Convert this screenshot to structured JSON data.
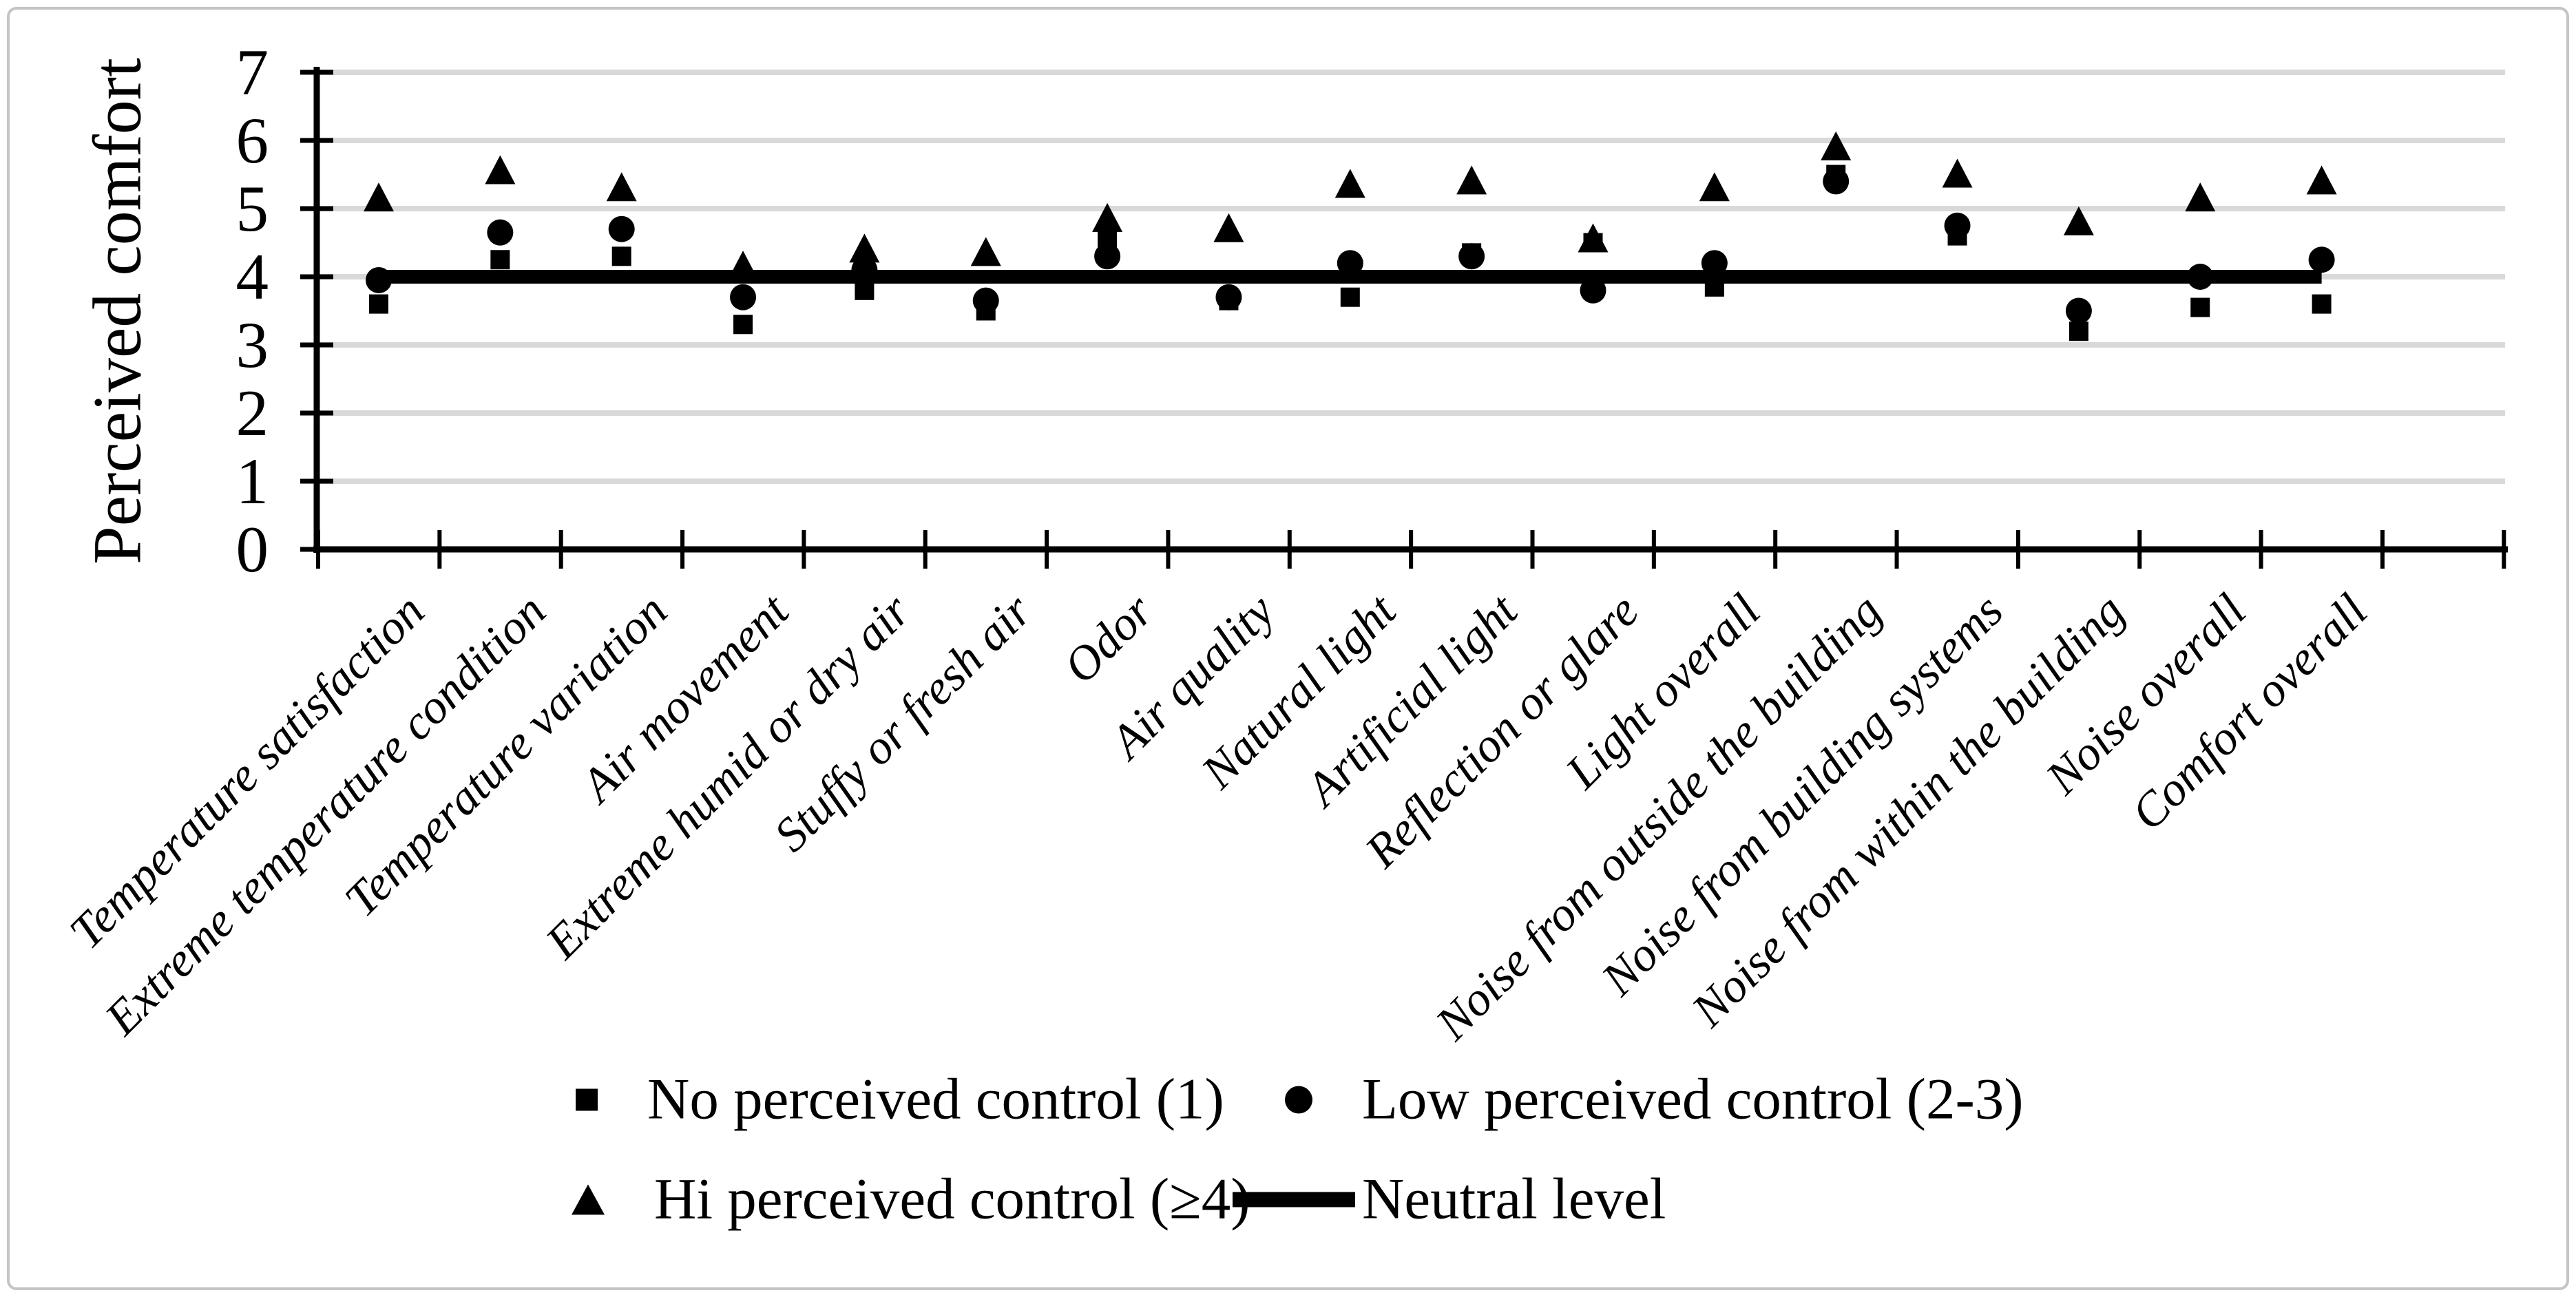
{
  "figure": {
    "ylabel": "Perceived comfort",
    "legend": [
      {
        "marker": "square",
        "label": "No perceived control (1)"
      },
      {
        "marker": "circle",
        "label": "Low perceived control (2-3)"
      },
      {
        "marker": "triangle",
        "label": "Hi perceived control (≥4)"
      },
      {
        "marker": "line",
        "label": "Neutral level"
      }
    ]
  },
  "chart_data": {
    "type": "scatter",
    "title": "",
    "xlabel": "",
    "ylabel": "Perceived comfort",
    "ylim": [
      0,
      7
    ],
    "yticks": [
      0,
      1,
      2,
      3,
      4,
      5,
      6,
      7
    ],
    "grid": true,
    "legend_position": "bottom",
    "categories": [
      "Temperature satisfaction",
      "Extreme temperature condition",
      "Temperature variation",
      "Air movement",
      "Extreme humid or dry air",
      "Stuffy or fresh air",
      "Odor",
      "Air quality",
      "Natural light",
      "Artificial light",
      "Reflection or glare",
      "Light overall",
      "Noise from outside the building",
      "Noise from building systems",
      "Noise from within the building",
      "Noise overall",
      "Comfort overall"
    ],
    "series": [
      {
        "name": "No perceived control (1)",
        "marker": "square",
        "values": [
          3.6,
          4.25,
          4.3,
          3.3,
          3.8,
          3.5,
          4.55,
          3.65,
          3.7,
          4.35,
          4.5,
          3.85,
          5.5,
          4.6,
          3.2,
          3.55,
          3.6
        ]
      },
      {
        "name": "Low perceived control (2-3)",
        "marker": "circle",
        "values": [
          3.95,
          4.65,
          4.7,
          3.7,
          4.1,
          3.65,
          4.3,
          3.7,
          4.2,
          4.3,
          3.8,
          4.2,
          5.4,
          4.75,
          3.5,
          4.0,
          4.25
        ]
      },
      {
        "name": "Hi perceived control (≥4)",
        "marker": "triangle",
        "values": [
          5.15,
          5.55,
          5.3,
          4.15,
          4.4,
          4.35,
          4.85,
          4.7,
          5.35,
          5.4,
          4.55,
          5.3,
          5.9,
          5.5,
          4.8,
          5.15,
          5.4
        ]
      }
    ],
    "neutral_level": 4
  },
  "colors": {
    "point": "#000000",
    "neutral_line": "#000000",
    "gridline": "#d9d9d9",
    "axis": "#000000",
    "frame_border": "#c4c4c4",
    "background": "#ffffff"
  }
}
